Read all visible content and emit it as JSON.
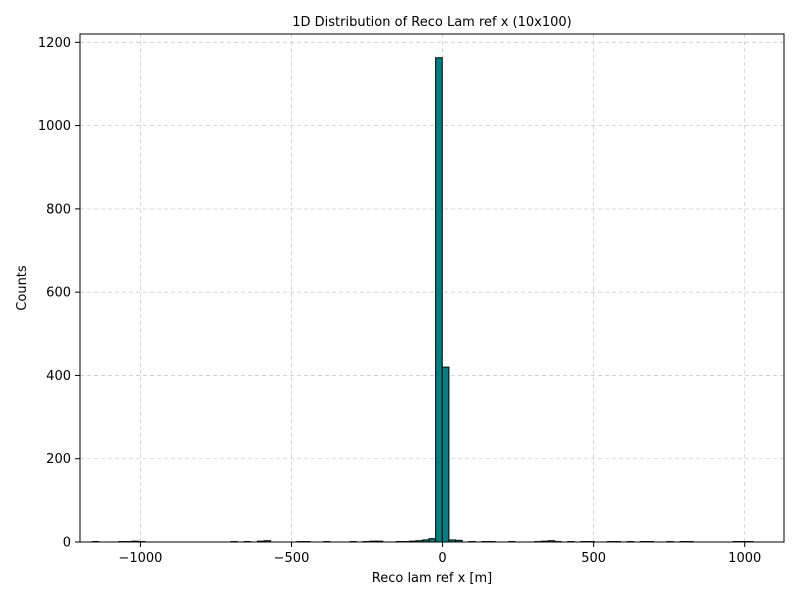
{
  "chart_data": {
    "type": "bar",
    "title": "1D Distribution of Reco Lam ref x (10x100)",
    "xlabel": "Reco lam ref x [m]",
    "ylabel": "Counts",
    "xlim": [
      -1200,
      1130
    ],
    "ylim": [
      0,
      1220
    ],
    "xticks": [
      -1000,
      -500,
      0,
      500,
      1000
    ],
    "xtick_labels": [
      "−1000",
      "−500",
      "0",
      "500",
      "1000"
    ],
    "yticks": [
      0,
      200,
      400,
      600,
      800,
      1000,
      1200
    ],
    "ytick_labels": [
      "0",
      "200",
      "400",
      "600",
      "800",
      "1000",
      "1200"
    ],
    "grid": true,
    "color": "#008080",
    "bin_edges_start": -1160,
    "bin_width": 21.85,
    "bins": [
      {
        "x": -1149,
        "count": 1
      },
      {
        "x": -1061,
        "count": 1
      },
      {
        "x": -1039,
        "count": 1
      },
      {
        "x": -1017,
        "count": 2
      },
      {
        "x": -996,
        "count": 1
      },
      {
        "x": -690,
        "count": 1
      },
      {
        "x": -646,
        "count": 1
      },
      {
        "x": -602,
        "count": 2
      },
      {
        "x": -580,
        "count": 3
      },
      {
        "x": -471,
        "count": 1
      },
      {
        "x": -449,
        "count": 1
      },
      {
        "x": -383,
        "count": 1
      },
      {
        "x": -296,
        "count": 1
      },
      {
        "x": -252,
        "count": 1
      },
      {
        "x": -230,
        "count": 2
      },
      {
        "x": -209,
        "count": 2
      },
      {
        "x": -143,
        "count": 1
      },
      {
        "x": -121,
        "count": 1
      },
      {
        "x": -99,
        "count": 2
      },
      {
        "x": -77,
        "count": 3
      },
      {
        "x": -55,
        "count": 5
      },
      {
        "x": -34,
        "count": 8
      },
      {
        "x": -12,
        "count": 1163
      },
      {
        "x": 10,
        "count": 420
      },
      {
        "x": 32,
        "count": 5
      },
      {
        "x": 54,
        "count": 4
      },
      {
        "x": 98,
        "count": 1
      },
      {
        "x": 141,
        "count": 1
      },
      {
        "x": 163,
        "count": 1
      },
      {
        "x": 229,
        "count": 1
      },
      {
        "x": 316,
        "count": 1
      },
      {
        "x": 338,
        "count": 2
      },
      {
        "x": 360,
        "count": 3
      },
      {
        "x": 382,
        "count": 1
      },
      {
        "x": 425,
        "count": 1
      },
      {
        "x": 469,
        "count": 1
      },
      {
        "x": 491,
        "count": 1
      },
      {
        "x": 556,
        "count": 1
      },
      {
        "x": 578,
        "count": 1
      },
      {
        "x": 622,
        "count": 1
      },
      {
        "x": 666,
        "count": 1
      },
      {
        "x": 688,
        "count": 1
      },
      {
        "x": 753,
        "count": 1
      },
      {
        "x": 797,
        "count": 1
      },
      {
        "x": 819,
        "count": 1
      },
      {
        "x": 972,
        "count": 1
      },
      {
        "x": 994,
        "count": 1
      },
      {
        "x": 1016,
        "count": 1
      }
    ]
  }
}
